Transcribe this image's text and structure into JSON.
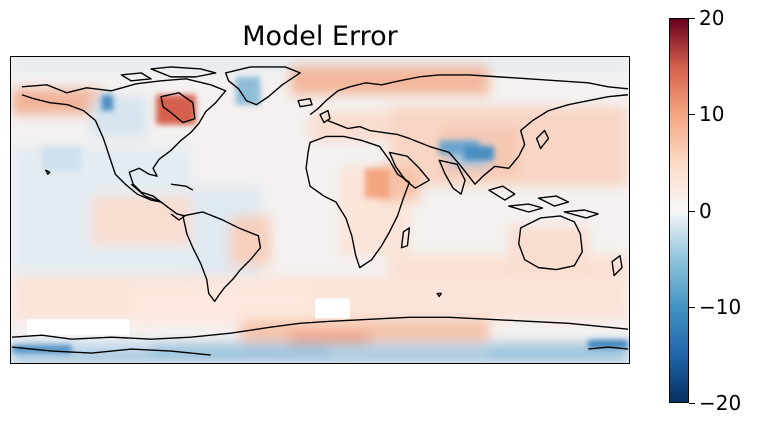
{
  "title": "Model Error",
  "colorbar": {
    "colormap": "RdBu_r",
    "range": [
      -20,
      20
    ],
    "ticks": [
      {
        "value": 20,
        "label": "20"
      },
      {
        "value": 10,
        "label": "10"
      },
      {
        "value": 0,
        "label": "0"
      },
      {
        "value": -10,
        "label": "−10"
      },
      {
        "value": -20,
        "label": "−20"
      }
    ],
    "colors": [
      "#053061",
      "#2166ac",
      "#4393c3",
      "#92c5de",
      "#f7f7f7",
      "#fddbc7",
      "#f4a582",
      "#d6604d",
      "#67001f"
    ]
  },
  "map": {
    "projection": "PlateCarree",
    "extent": {
      "lon": [
        -180,
        180
      ],
      "lat": [
        -90,
        90
      ]
    },
    "coastlines": true,
    "coastline_color": "#000000",
    "missing_color": "#ffffff"
  }
}
